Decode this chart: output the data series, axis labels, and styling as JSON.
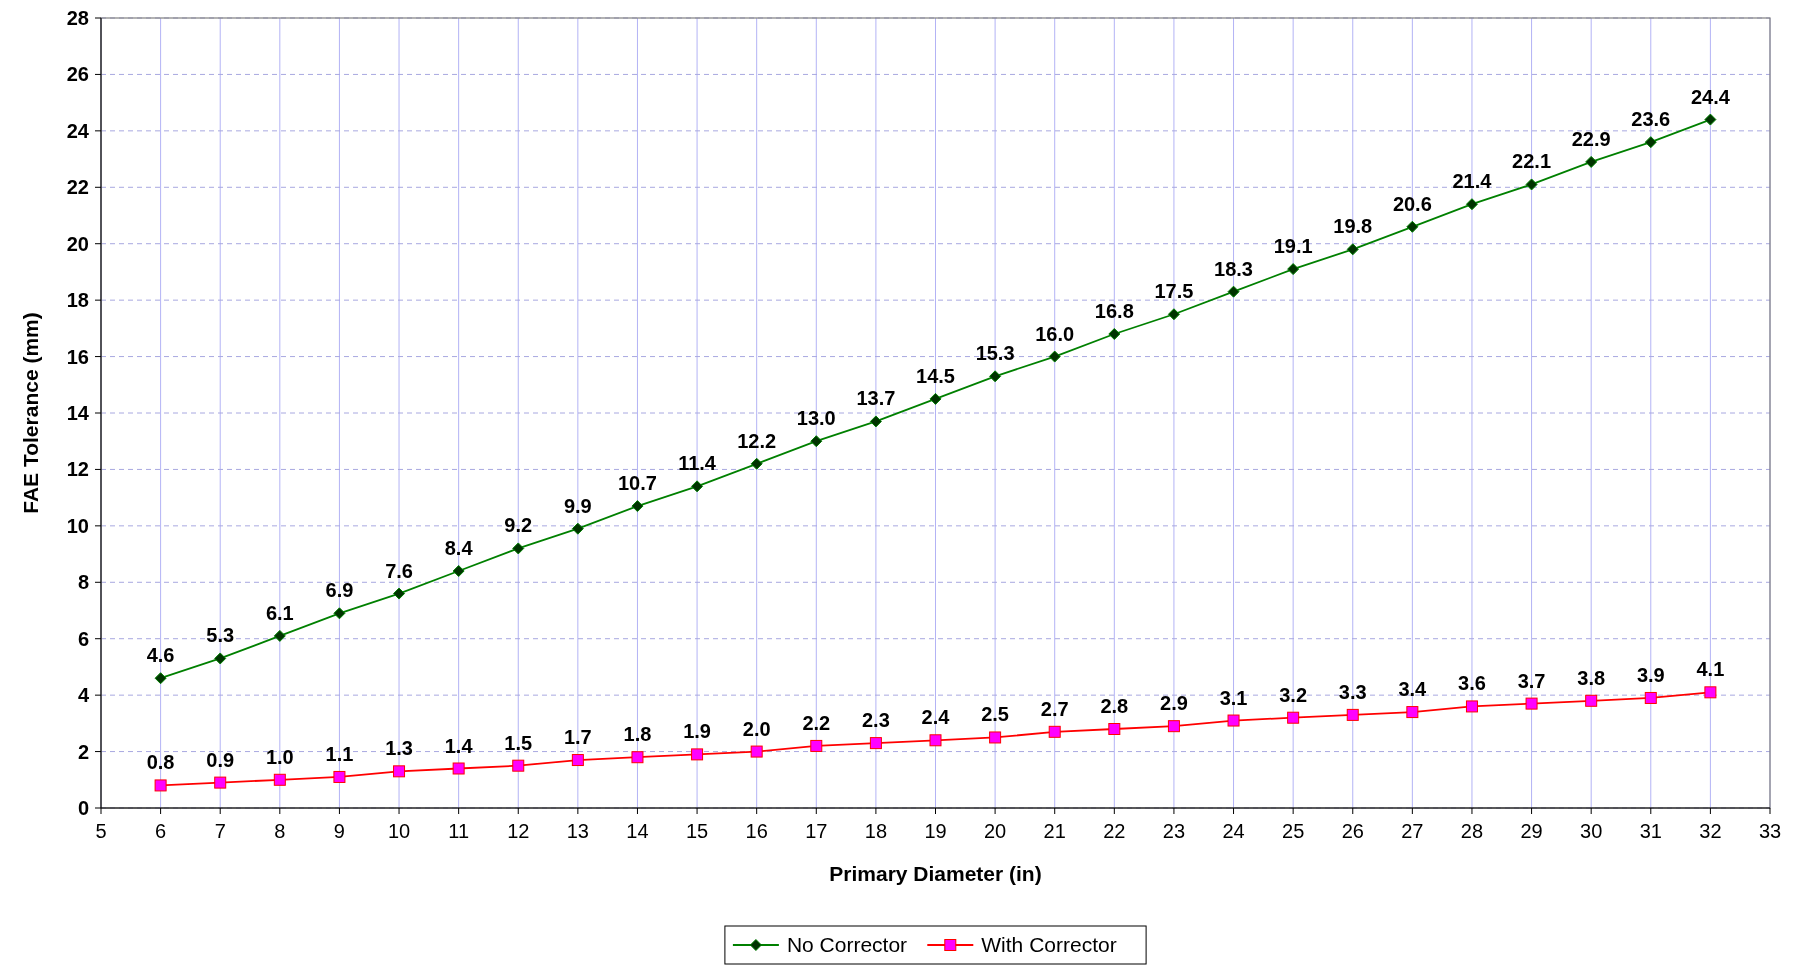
{
  "chart_data": {
    "type": "line",
    "xlabel": "Primary Diameter (in)",
    "ylabel": "FAE Tolerance (mm)",
    "x": [
      6,
      7,
      8,
      9,
      10,
      11,
      12,
      13,
      14,
      15,
      16,
      17,
      18,
      19,
      20,
      21,
      22,
      23,
      24,
      25,
      26,
      27,
      28,
      29,
      30,
      31,
      32
    ],
    "series": [
      {
        "name": "No Corrector",
        "color": "#008000",
        "marker": "diamond",
        "values": [
          4.6,
          5.3,
          6.1,
          6.9,
          7.6,
          8.4,
          9.2,
          9.9,
          10.7,
          11.4,
          12.2,
          13,
          13.7,
          14.5,
          15.3,
          16,
          16.8,
          17.5,
          18.3,
          19.1,
          19.8,
          20.6,
          21.4,
          22.1,
          22.9,
          23.6,
          24.4
        ],
        "value_labels": [
          "4.6",
          "5.3",
          "6.1",
          "6.9",
          "7.6",
          "8.4",
          "9.2",
          "9.9",
          "10.7",
          "11.4",
          "12.2",
          "13.0",
          "13.7",
          "14.5",
          "15.3",
          "16.0",
          "16.8",
          "17.5",
          "18.3",
          "19.1",
          "19.8",
          "20.6",
          "21.4",
          "22.1",
          "22.9",
          "23.6",
          "24.4"
        ]
      },
      {
        "name": "With Corrector",
        "color": "#ff0000",
        "marker": "square",
        "values": [
          0.8,
          0.9,
          1,
          1.1,
          1.3,
          1.4,
          1.5,
          1.7,
          1.8,
          1.9,
          2,
          2.2,
          2.3,
          2.4,
          2.5,
          2.7,
          2.8,
          2.9,
          3.1,
          3.2,
          3.3,
          3.4,
          3.6,
          3.7,
          3.8,
          3.9,
          4.1
        ],
        "value_labels": [
          "0.8",
          "0.9",
          "1.0",
          "1.1",
          "1.3",
          "1.4",
          "1.5",
          "1.7",
          "1.8",
          "1.9",
          "2.0",
          "2.2",
          "2.3",
          "2.4",
          "2.5",
          "2.7",
          "2.8",
          "2.9",
          "3.1",
          "3.2",
          "3.3",
          "3.4",
          "3.6",
          "3.7",
          "3.8",
          "3.9",
          "4.1"
        ]
      }
    ],
    "xlim": [
      5,
      33
    ],
    "xticks": [
      5,
      6,
      7,
      8,
      9,
      10,
      11,
      12,
      13,
      14,
      15,
      16,
      17,
      18,
      19,
      20,
      21,
      22,
      23,
      24,
      25,
      26,
      27,
      28,
      29,
      30,
      31,
      32,
      33
    ],
    "ylim": [
      0,
      28
    ],
    "yticks": [
      0,
      2,
      4,
      6,
      8,
      10,
      12,
      14,
      16,
      18,
      20,
      22,
      24,
      26,
      28
    ],
    "grid": true,
    "legend": "bottom"
  }
}
